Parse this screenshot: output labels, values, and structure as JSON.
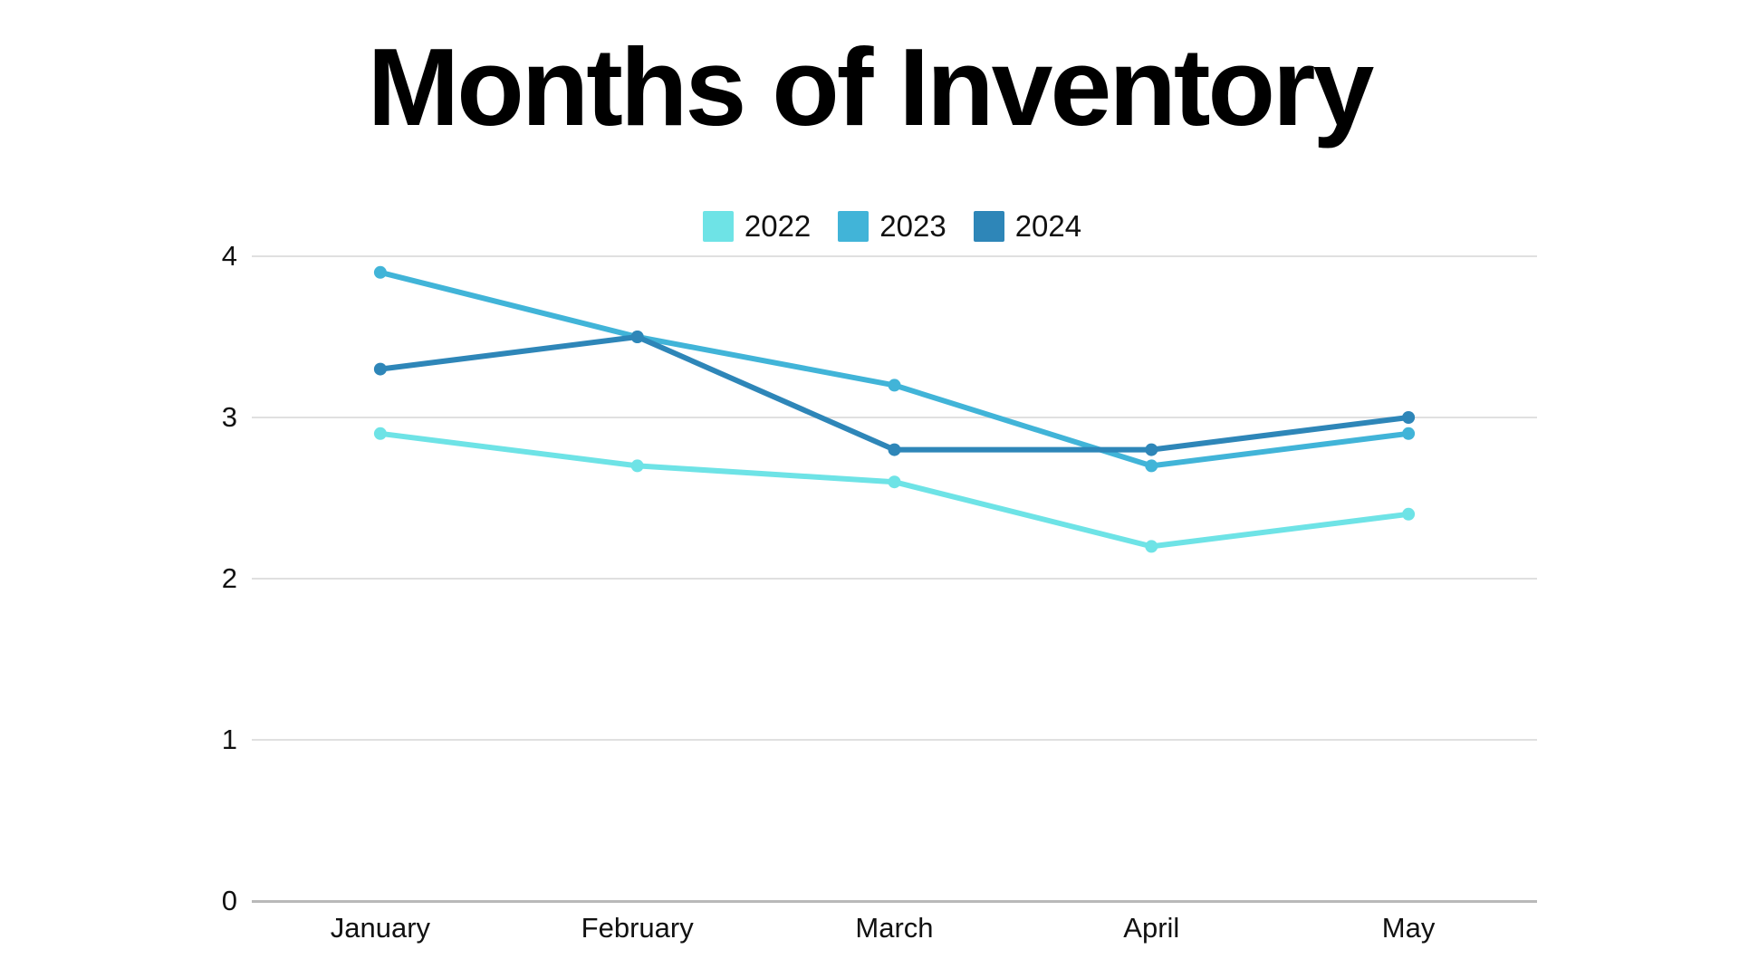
{
  "title": "Months of Inventory",
  "legend": {
    "items": [
      {
        "label": "2022",
        "color": "#6ee3e6"
      },
      {
        "label": "2023",
        "color": "#41b4d8"
      },
      {
        "label": "2024",
        "color": "#2e86b8"
      }
    ]
  },
  "chart_data": {
    "type": "line",
    "title": "Months of Inventory",
    "xlabel": "",
    "ylabel": "",
    "categories": [
      "January",
      "February",
      "March",
      "April",
      "May"
    ],
    "series": [
      {
        "name": "2022",
        "color": "#6ee3e6",
        "values": [
          2.9,
          2.7,
          2.6,
          2.2,
          2.4
        ]
      },
      {
        "name": "2023",
        "color": "#41b4d8",
        "values": [
          3.9,
          3.5,
          3.2,
          2.7,
          2.9
        ]
      },
      {
        "name": "2024",
        "color": "#2e86b8",
        "values": [
          3.3,
          3.5,
          2.8,
          2.8,
          3.0
        ]
      }
    ],
    "ylim": [
      0,
      4
    ],
    "y_ticks": [
      0,
      1,
      2,
      3,
      4
    ],
    "grid": true,
    "legend_position": "top-center",
    "gridline_color": "#e0e0e0",
    "axis_color": "#b9b9b9",
    "text_color": "#111111",
    "background_color": "#ffffff"
  }
}
